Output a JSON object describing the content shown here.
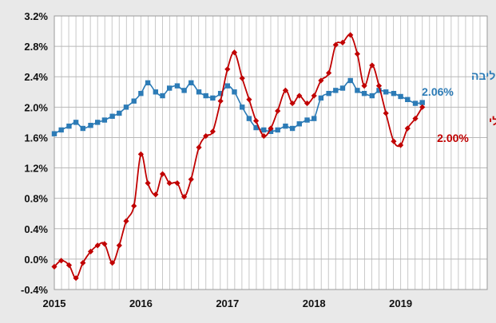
{
  "chart_data": {
    "type": "line",
    "title": "",
    "xlabel": "",
    "ylabel": "",
    "x_range": [
      2015,
      2020
    ],
    "ylim": [
      -0.4,
      3.2
    ],
    "y_ticks": [
      "-0.4%",
      "0.0%",
      "0.4%",
      "0.8%",
      "1.2%",
      "1.6%",
      "2.0%",
      "2.4%",
      "2.8%",
      "3.2%"
    ],
    "x_ticks": [
      "2015",
      "2016",
      "2017",
      "2018",
      "2019"
    ],
    "grid": true,
    "series": [
      {
        "name": "מדד הליבה",
        "color": "#2c7bb6",
        "marker": "square",
        "value_label": "2.06%",
        "x": [
          2015.0,
          2015.08,
          2015.17,
          2015.25,
          2015.33,
          2015.42,
          2015.5,
          2015.58,
          2015.67,
          2015.75,
          2015.83,
          2015.92,
          2016.0,
          2016.08,
          2016.17,
          2016.25,
          2016.33,
          2016.42,
          2016.5,
          2016.58,
          2016.67,
          2016.75,
          2016.83,
          2016.92,
          2017.0,
          2017.08,
          2017.17,
          2017.25,
          2017.33,
          2017.42,
          2017.5,
          2017.58,
          2017.67,
          2017.75,
          2017.83,
          2017.92,
          2018.0,
          2018.08,
          2018.17,
          2018.25,
          2018.33,
          2018.42,
          2018.5,
          2018.58,
          2018.67,
          2018.75,
          2018.83,
          2018.92,
          2019.0,
          2019.08,
          2019.17,
          2019.25
        ],
        "y": [
          1.65,
          1.7,
          1.75,
          1.8,
          1.72,
          1.76,
          1.8,
          1.83,
          1.88,
          1.92,
          2.0,
          2.08,
          2.18,
          2.32,
          2.2,
          2.15,
          2.25,
          2.28,
          2.22,
          2.32,
          2.2,
          2.15,
          2.12,
          2.18,
          2.28,
          2.2,
          2.0,
          1.85,
          1.73,
          1.7,
          1.68,
          1.7,
          1.75,
          1.72,
          1.78,
          1.83,
          1.85,
          2.12,
          2.18,
          2.22,
          2.25,
          2.35,
          2.22,
          2.18,
          2.15,
          2.22,
          2.2,
          2.18,
          2.14,
          2.1,
          2.05,
          2.06
        ]
      },
      {
        "name": "המדד הכללי",
        "color": "#c00000",
        "marker": "diamond",
        "value_label": "2.00%",
        "x": [
          2015.0,
          2015.08,
          2015.17,
          2015.25,
          2015.33,
          2015.42,
          2015.5,
          2015.58,
          2015.67,
          2015.75,
          2015.83,
          2015.92,
          2016.0,
          2016.08,
          2016.17,
          2016.25,
          2016.33,
          2016.42,
          2016.5,
          2016.58,
          2016.67,
          2016.75,
          2016.83,
          2016.92,
          2017.0,
          2017.08,
          2017.17,
          2017.25,
          2017.33,
          2017.42,
          2017.5,
          2017.58,
          2017.67,
          2017.75,
          2017.83,
          2017.92,
          2018.0,
          2018.08,
          2018.17,
          2018.25,
          2018.33,
          2018.42,
          2018.5,
          2018.58,
          2018.67,
          2018.75,
          2018.83,
          2018.92,
          2019.0,
          2019.08,
          2019.17,
          2019.25
        ],
        "y": [
          -0.1,
          -0.02,
          -0.08,
          -0.25,
          -0.05,
          0.1,
          0.18,
          0.2,
          -0.05,
          0.18,
          0.5,
          0.7,
          1.38,
          1.0,
          0.85,
          1.12,
          1.0,
          1.0,
          0.82,
          1.05,
          1.47,
          1.62,
          1.68,
          2.08,
          2.5,
          2.72,
          2.38,
          2.1,
          1.82,
          1.62,
          1.72,
          1.95,
          2.22,
          2.05,
          2.15,
          2.05,
          2.15,
          2.35,
          2.45,
          2.82,
          2.85,
          2.95,
          2.7,
          2.28,
          2.55,
          2.28,
          1.92,
          1.55,
          1.5,
          1.72,
          1.85,
          2.0
        ]
      }
    ]
  }
}
